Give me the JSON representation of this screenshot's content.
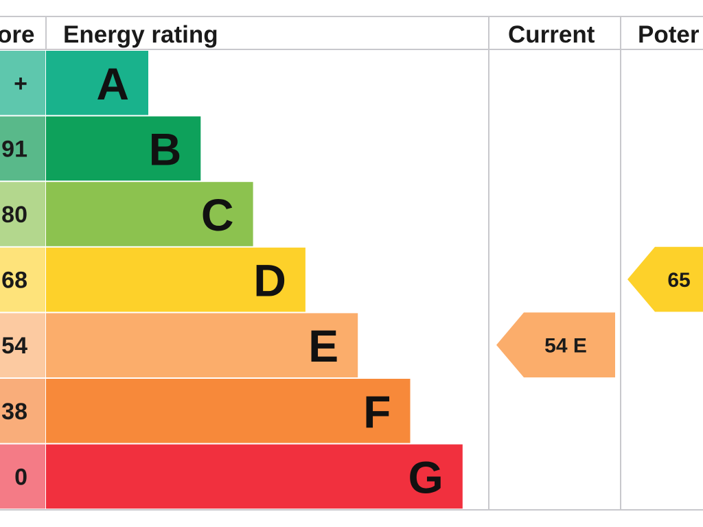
{
  "chart_data": {
    "type": "bar",
    "title": "",
    "headers": {
      "score": "ore",
      "rating": "Energy rating",
      "current": "Current",
      "potential": "Poter"
    },
    "bands": [
      {
        "letter": "A",
        "score_label": "+",
        "color": "#19b28c",
        "score_bg": "#5ec7ad"
      },
      {
        "letter": "B",
        "score_label": "91",
        "color": "#0ea15b",
        "score_bg": "#59b98a"
      },
      {
        "letter": "C",
        "score_label": "80",
        "color": "#8cc24f",
        "score_bg": "#b3d78d"
      },
      {
        "letter": "D",
        "score_label": "68",
        "color": "#fdd12a",
        "score_bg": "#fee37a"
      },
      {
        "letter": "E",
        "score_label": "54",
        "color": "#fbad6b",
        "score_bg": "#fccaa1"
      },
      {
        "letter": "F",
        "score_label": "38",
        "color": "#f7893a",
        "score_bg": "#f9ad7a"
      },
      {
        "letter": "G",
        "score_label": "0",
        "color": "#f1303e",
        "score_bg": "#f47b86"
      }
    ],
    "current": {
      "value": 54,
      "band": "E",
      "label": "54  E",
      "color": "#fbad6b"
    },
    "potential": {
      "value": 65,
      "band": "D",
      "label": "65",
      "color": "#fdd12a"
    }
  }
}
